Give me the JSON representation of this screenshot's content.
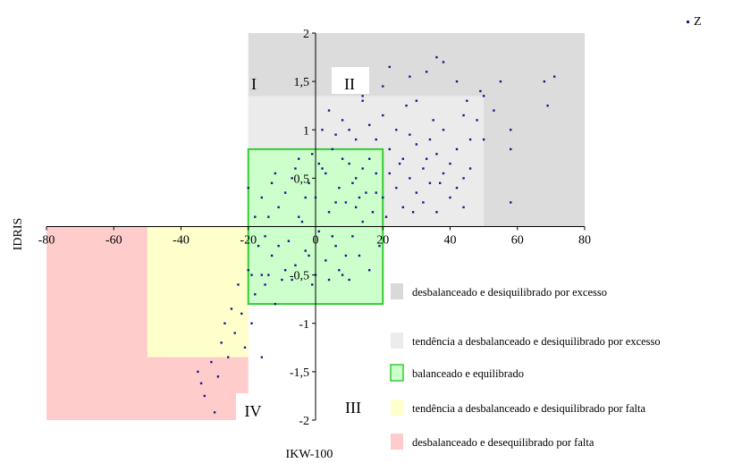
{
  "chart_data": {
    "type": "scatter",
    "xlabel": "IKW-100",
    "ylabel": "IDRIS",
    "xlim": [
      -80,
      80
    ],
    "ylim": [
      -2,
      2
    ],
    "x_ticks": [
      "-80",
      "-60",
      "-40",
      "-20",
      "0",
      "20",
      "40",
      "60",
      "80"
    ],
    "y_ticks": [
      "2",
      "1,5",
      "1",
      "0,5",
      "0",
      "-0,5",
      "-1",
      "-1,5",
      "-2"
    ],
    "grid": false,
    "legend_position": "top-right",
    "series": [
      {
        "name": "Z",
        "color": "#1a1a8c",
        "points": [
          [
            -35,
            -1.5
          ],
          [
            -34,
            -1.62
          ],
          [
            -33,
            -1.75
          ],
          [
            -31,
            -1.4
          ],
          [
            -30,
            -1.92
          ],
          [
            -29,
            -1.55
          ],
          [
            -28,
            -1.2
          ],
          [
            -27,
            -1.0
          ],
          [
            -26,
            -1.35
          ],
          [
            -25,
            -0.85
          ],
          [
            -24,
            -1.1
          ],
          [
            -23,
            -0.6
          ],
          [
            -22,
            -0.9
          ],
          [
            -21,
            -1.25
          ],
          [
            -20,
            -0.45
          ],
          [
            -19,
            -1.0
          ],
          [
            -18,
            -0.7
          ],
          [
            -17,
            -0.2
          ],
          [
            -16,
            -0.5
          ],
          [
            -16,
            -1.35
          ],
          [
            -15,
            -0.1
          ],
          [
            -14,
            0.1
          ],
          [
            -13,
            -0.3
          ],
          [
            -12,
            -0.8
          ],
          [
            -11,
            0.2
          ],
          [
            -10,
            -0.55
          ],
          [
            -9,
            0.35
          ],
          [
            -8,
            -0.15
          ],
          [
            -7,
            0.5
          ],
          [
            -6,
            -0.4
          ],
          [
            -5,
            0.7
          ],
          [
            -4,
            0.05
          ],
          [
            -3,
            -0.25
          ],
          [
            -2,
            0.45
          ],
          [
            -1,
            -0.6
          ],
          [
            0,
            0.3
          ],
          [
            1,
            -0.05
          ],
          [
            2,
            0.6
          ],
          [
            3,
            -0.35
          ],
          [
            4,
            0.15
          ],
          [
            5,
            0.8
          ],
          [
            6,
            -0.2
          ],
          [
            7,
            0.4
          ],
          [
            8,
            -0.5
          ],
          [
            9,
            0.25
          ],
          [
            10,
            0.65
          ],
          [
            11,
            -0.1
          ],
          [
            12,
            0.5
          ],
          [
            13,
            -0.3
          ],
          [
            14,
            0.05
          ],
          [
            15,
            0.35
          ],
          [
            16,
            -0.45
          ],
          [
            17,
            0.15
          ],
          [
            18,
            0.55
          ],
          [
            19,
            -0.2
          ],
          [
            -15,
            -0.6
          ],
          [
            -12,
            0.55
          ],
          [
            -9,
            -0.45
          ],
          [
            -6,
            0.6
          ],
          [
            -3,
            0.3
          ],
          [
            0,
            -0.5
          ],
          [
            3,
            0.55
          ],
          [
            6,
            0.25
          ],
          [
            9,
            -0.3
          ],
          [
            12,
            0.2
          ],
          [
            -18,
            0.1
          ],
          [
            -13,
            0.45
          ],
          [
            -7,
            -0.55
          ],
          [
            -2,
            -0.3
          ],
          [
            4,
            -0.55
          ],
          [
            8,
            0.7
          ],
          [
            14,
            0.6
          ],
          [
            -11,
            -0.2
          ],
          [
            -5,
            0.1
          ],
          [
            1,
            0.65
          ],
          [
            7,
            -0.45
          ],
          [
            13,
            0.3
          ],
          [
            -19,
            -0.5
          ],
          [
            -16,
            0.3
          ],
          [
            10,
            -0.55
          ],
          [
            16,
            0.7
          ],
          [
            -20,
            0.4
          ],
          [
            -14,
            -0.5
          ],
          [
            -1,
            0.75
          ],
          [
            5,
            -0.1
          ],
          [
            11,
            0.45
          ],
          [
            2,
            1.0
          ],
          [
            4,
            1.2
          ],
          [
            6,
            0.95
          ],
          [
            8,
            1.1
          ],
          [
            10,
            1.0
          ],
          [
            12,
            0.9
          ],
          [
            14,
            1.3
          ],
          [
            16,
            1.05
          ],
          [
            18,
            0.9
          ],
          [
            20,
            1.15
          ],
          [
            22,
            0.8
          ],
          [
            24,
            1.0
          ],
          [
            26,
            0.7
          ],
          [
            28,
            0.95
          ],
          [
            30,
            0.85
          ],
          [
            32,
            0.6
          ],
          [
            34,
            0.9
          ],
          [
            36,
            0.75
          ],
          [
            38,
            1.0
          ],
          [
            40,
            0.65
          ],
          [
            42,
            0.8
          ],
          [
            44,
            0.5
          ],
          [
            46,
            0.9
          ],
          [
            48,
            1.1
          ],
          [
            20,
            0.3
          ],
          [
            22,
            0.55
          ],
          [
            24,
            0.4
          ],
          [
            26,
            0.2
          ],
          [
            28,
            0.5
          ],
          [
            30,
            0.35
          ],
          [
            32,
            0.25
          ],
          [
            34,
            0.45
          ],
          [
            36,
            0.15
          ],
          [
            38,
            0.55
          ],
          [
            40,
            0.3
          ],
          [
            42,
            0.4
          ],
          [
            44,
            0.2
          ],
          [
            46,
            0.6
          ],
          [
            18,
            0.35
          ],
          [
            21,
            0.1
          ],
          [
            25,
            0.65
          ],
          [
            29,
            0.15
          ],
          [
            33,
            0.7
          ],
          [
            37,
            0.45
          ],
          [
            9,
            1.5
          ],
          [
            14,
            1.35
          ],
          [
            20,
            1.45
          ],
          [
            22,
            1.65
          ],
          [
            28,
            1.55
          ],
          [
            30,
            1.3
          ],
          [
            33,
            1.6
          ],
          [
            36,
            1.75
          ],
          [
            38,
            1.7
          ],
          [
            42,
            1.5
          ],
          [
            45,
            1.3
          ],
          [
            49,
            1.4
          ],
          [
            50,
            1.35
          ],
          [
            53,
            1.2
          ],
          [
            55,
            1.5
          ],
          [
            58,
            1.0
          ],
          [
            58,
            0.8
          ],
          [
            58,
            0.25
          ],
          [
            68,
            1.5
          ],
          [
            69,
            1.25
          ],
          [
            71,
            1.55
          ],
          [
            50,
            0.9
          ],
          [
            35,
            1.1
          ],
          [
            44,
            1.15
          ],
          [
            27,
            1.25
          ]
        ]
      }
    ],
    "regions": [
      {
        "label": "desbalanceado e desiquilibrado por excesso",
        "x": [
          -20,
          80
        ],
        "y": [
          0,
          2
        ],
        "color": "#dcdcdc"
      },
      {
        "label": "tendência a desbalanceado e desiquilibrado por excesso",
        "x": [
          -20,
          50
        ],
        "y": [
          0,
          1.35
        ],
        "color": "#ebebeb"
      },
      {
        "label": "desbalanceado e desequilibrado por falta",
        "x": [
          -80,
          -20
        ],
        "y": [
          -2,
          0
        ],
        "color": "#ffcccc"
      },
      {
        "label": "tendência a desbalanceado e desiquilibrado por falta",
        "x": [
          -50,
          -20
        ],
        "y": [
          -1.35,
          0
        ],
        "color": "#ffffcc"
      },
      {
        "label": "balanceado e equilibrado",
        "x": [
          -20,
          20
        ],
        "y": [
          -0.8,
          0.8
        ],
        "color": "#ccffcc",
        "border": "#33cc33"
      }
    ],
    "quadrant_labels": [
      "I",
      "II",
      "III",
      "IV"
    ],
    "legend": [
      {
        "label": "desbalanceado e desiquilibrado por excesso",
        "color": "#d9d9d9",
        "border": "#d9d9d9"
      },
      {
        "label": "tendência a desbalanceado e desiquilibrado por excesso",
        "color": "#ececec",
        "border": "#ececec"
      },
      {
        "label": "balanceado e equilibrado",
        "color": "#ccffcc",
        "border": "#33cc33"
      },
      {
        "label": "tendência a desbalanceado e desiquilibrado por falta",
        "color": "#ffffcc",
        "border": "#ffffcc"
      },
      {
        "label": "desbalanceado e desequilibrado por falta",
        "color": "#ffcccc",
        "border": "#ffcccc"
      }
    ]
  }
}
